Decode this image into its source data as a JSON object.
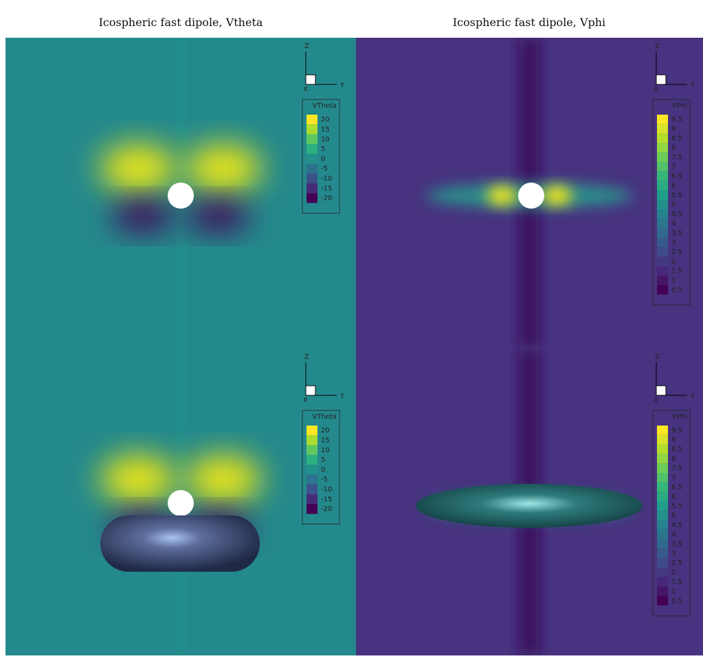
{
  "columns": [
    {
      "title": "Icospheric fast dipole, Vtheta"
    },
    {
      "title": "Icospheric fast dipole, Vphi"
    }
  ],
  "panels": [
    {
      "axes": {
        "z": "Z",
        "x": "X",
        "y": "Y"
      },
      "legend": {
        "title": "VTheta",
        "labels": [
          "20",
          "15",
          "10",
          "5",
          "0",
          "-5",
          "-10",
          "-15",
          "-20"
        ]
      }
    },
    {
      "axes": {
        "z": "Z",
        "x": "X",
        "y": "Y"
      },
      "legend": {
        "title": "VPhi",
        "labels": [
          "9.5",
          "9",
          "8.5",
          "8",
          "7.5",
          "7",
          "6.5",
          "6",
          "5.5",
          "5",
          "4.5",
          "4",
          "3.5",
          "3",
          "2.5",
          "2",
          "1.5",
          "1",
          "0.5"
        ]
      }
    },
    {
      "axes": {
        "z": "Z",
        "x": "X",
        "y": "Y"
      },
      "legend": {
        "title": "VTheta",
        "labels": [
          "20",
          "15",
          "10",
          "5",
          "0",
          "-5",
          "-10",
          "-15",
          "-20"
        ]
      }
    },
    {
      "axes": {
        "z": "Z",
        "x": "X",
        "y": "Y"
      },
      "legend": {
        "title": "VPhi",
        "labels": [
          "9.5",
          "9",
          "8.5",
          "8",
          "7.5",
          "7",
          "6.5",
          "6",
          "5.5",
          "5",
          "4.5",
          "4",
          "3.5",
          "3",
          "2.5",
          "2",
          "1.5",
          "1",
          "0.5"
        ]
      }
    }
  ]
}
